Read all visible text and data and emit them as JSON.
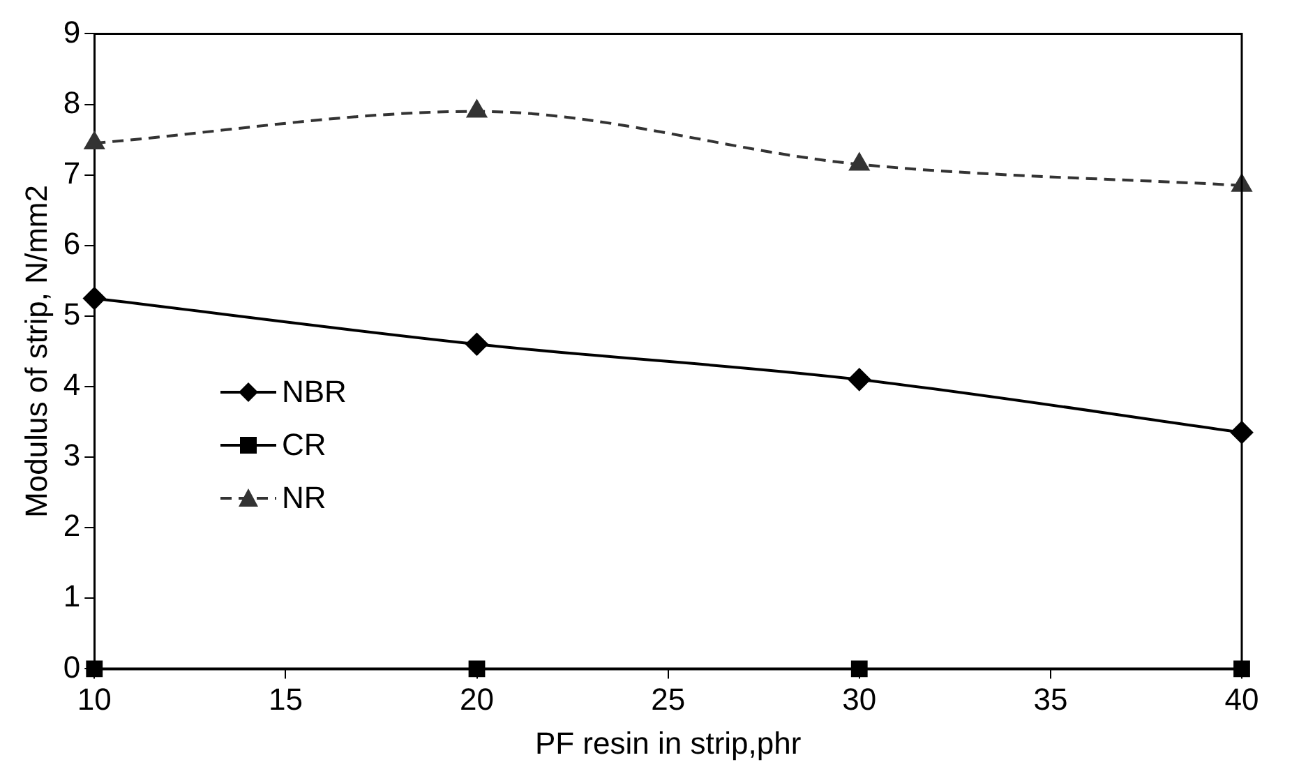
{
  "chart_data": {
    "type": "line",
    "xlabel": "PF resin in strip,phr",
    "ylabel": "Modulus of strip, N/mm2",
    "x": [
      10,
      20,
      30,
      40
    ],
    "series": [
      {
        "name": "NBR",
        "color": "#000000",
        "marker": "diamond",
        "line_style": "solid",
        "values": [
          5.25,
          4.6,
          4.1,
          3.35
        ]
      },
      {
        "name": "CR",
        "color": "#000000",
        "marker": "square",
        "line_style": "solid",
        "values": [
          0,
          0,
          0,
          0
        ]
      },
      {
        "name": "NR",
        "color": "#333333",
        "marker": "triangle",
        "line_style": "dashed",
        "values": [
          7.45,
          7.9,
          7.15,
          6.85
        ]
      }
    ],
    "xlim": [
      10,
      40
    ],
    "xticks": [
      10,
      15,
      20,
      25,
      30,
      35,
      40
    ],
    "ylim": [
      0,
      9
    ],
    "yticks": [
      0,
      1,
      2,
      3,
      4,
      5,
      6,
      7,
      8,
      9
    ],
    "grid": false,
    "legend": "left"
  }
}
